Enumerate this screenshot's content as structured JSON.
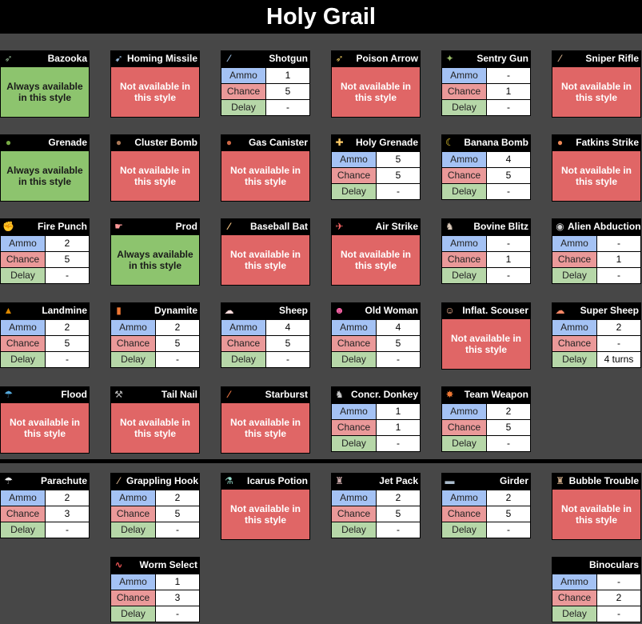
{
  "title": "Holy Grail",
  "labels": {
    "ammo": "Ammo",
    "chance": "Chance",
    "delay": "Delay"
  },
  "colors": {
    "background": "#474747",
    "header": "#000000",
    "available": "#8dc46e",
    "not_available": "#e06666",
    "ammo": "#a4c2f4",
    "chance": "#ea9999",
    "delay": "#b6d7a8"
  },
  "weapons": [
    {
      "name": "Bazooka",
      "icon": "bazooka-icon",
      "glyph": "➶",
      "icon_color": "#8a8",
      "status": "Always available in this style"
    },
    {
      "name": "Homing Missile",
      "icon": "homing-missile-icon",
      "glyph": "➹",
      "icon_color": "#9bd",
      "status": "Not available in this style"
    },
    {
      "name": "Shotgun",
      "icon": "shotgun-icon",
      "glyph": "⁄",
      "icon_color": "#9bd",
      "ammo": "1",
      "chance": "5",
      "delay": "-"
    },
    {
      "name": "Poison Arrow",
      "icon": "poison-arrow-icon",
      "glyph": "➶",
      "icon_color": "#db5",
      "status": "Not available in this style"
    },
    {
      "name": "Sentry Gun",
      "icon": "sentry-gun-icon",
      "glyph": "✦",
      "icon_color": "#9b6",
      "ammo": "-",
      "chance": "1",
      "delay": "-"
    },
    {
      "name": "Sniper Rifle",
      "icon": "sniper-rifle-icon",
      "glyph": "⁄",
      "icon_color": "#ca8",
      "status": "Not available in this style"
    },
    {
      "name": "Grenade",
      "icon": "grenade-icon",
      "glyph": "●",
      "icon_color": "#7a4",
      "status": "Always available in this style"
    },
    {
      "name": "Cluster Bomb",
      "icon": "cluster-bomb-icon",
      "glyph": "●",
      "icon_color": "#a75",
      "status": "Not available in this style"
    },
    {
      "name": "Gas Canister",
      "icon": "gas-canister-icon",
      "glyph": "●",
      "icon_color": "#c64",
      "status": "Not available in this style"
    },
    {
      "name": "Holy Grenade",
      "icon": "holy-grenade-icon",
      "glyph": "✚",
      "icon_color": "#fc6",
      "ammo": "5",
      "chance": "5",
      "delay": "-"
    },
    {
      "name": "Banana Bomb",
      "icon": "banana-bomb-icon",
      "glyph": "☾",
      "icon_color": "#fd3",
      "ammo": "4",
      "chance": "5",
      "delay": "-"
    },
    {
      "name": "Fatkins Strike",
      "icon": "fatkins-strike-icon",
      "glyph": "●",
      "icon_color": "#e85",
      "status": "Not available in this style"
    },
    {
      "name": "Fire Punch",
      "icon": "fire-punch-icon",
      "glyph": "✊",
      "icon_color": "#f84",
      "ammo": "2",
      "chance": "5",
      "delay": "-"
    },
    {
      "name": "Prod",
      "icon": "prod-icon",
      "glyph": "☛",
      "icon_color": "#f99",
      "status": "Always available in this style"
    },
    {
      "name": "Baseball Bat",
      "icon": "baseball-bat-icon",
      "glyph": "⁄",
      "icon_color": "#fc8",
      "status": "Not available in this style"
    },
    {
      "name": "Air Strike",
      "icon": "air-strike-icon",
      "glyph": "✈",
      "icon_color": "#f66",
      "status": "Not available in this style"
    },
    {
      "name": "Bovine Blitz",
      "icon": "bovine-blitz-icon",
      "glyph": "♞",
      "icon_color": "#dcb",
      "ammo": "-",
      "chance": "1",
      "delay": "-"
    },
    {
      "name": "Alien Abduction",
      "icon": "alien-abduction-icon",
      "glyph": "◉",
      "icon_color": "#ccc",
      "ammo": "-",
      "chance": "1",
      "delay": "-"
    },
    {
      "name": "Landmine",
      "icon": "landmine-icon",
      "glyph": "▲",
      "icon_color": "#d80",
      "ammo": "2",
      "chance": "5",
      "delay": "-"
    },
    {
      "name": "Dynamite",
      "icon": "dynamite-icon",
      "glyph": "▮",
      "icon_color": "#e73",
      "ammo": "2",
      "chance": "5",
      "delay": "-"
    },
    {
      "name": "Sheep",
      "icon": "sheep-icon",
      "glyph": "☁",
      "icon_color": "#fdd",
      "ammo": "4",
      "chance": "5",
      "delay": "-"
    },
    {
      "name": "Old Woman",
      "icon": "old-woman-icon",
      "glyph": "☻",
      "icon_color": "#f6a",
      "ammo": "4",
      "chance": "5",
      "delay": "-"
    },
    {
      "name": "Inflat. Scouser",
      "icon": "inflatable-scouser-icon",
      "glyph": "☺",
      "icon_color": "#fb9",
      "status": "Not available in this style"
    },
    {
      "name": "Super Sheep",
      "icon": "super-sheep-icon",
      "glyph": "☁",
      "icon_color": "#f86",
      "ammo": "2",
      "chance": "-",
      "delay": "4 turns"
    },
    {
      "name": "Flood",
      "icon": "flood-icon",
      "glyph": "☂",
      "icon_color": "#5ad",
      "status": "Not available in this style"
    },
    {
      "name": "Tail Nail",
      "icon": "tail-nail-icon",
      "glyph": "⚒",
      "icon_color": "#bbb",
      "status": "Not available in this style"
    },
    {
      "name": "Starburst",
      "icon": "starburst-icon",
      "glyph": "⁄",
      "icon_color": "#e74",
      "status": "Not available in this style"
    },
    {
      "name": "Concr. Donkey",
      "icon": "concrete-donkey-icon",
      "glyph": "♞",
      "icon_color": "#ccc",
      "ammo": "1",
      "chance": "1",
      "delay": "-"
    },
    {
      "name": "Team Weapon",
      "icon": "team-weapon-icon",
      "glyph": "✸",
      "icon_color": "#e73",
      "ammo": "2",
      "chance": "5",
      "delay": "-"
    },
    {
      "name": "Parachute",
      "icon": "parachute-icon",
      "glyph": "☂",
      "icon_color": "#eee",
      "ammo": "2",
      "chance": "3",
      "delay": "-"
    },
    {
      "name": "Grappling Hook",
      "icon": "grappling-hook-icon",
      "glyph": "⁄",
      "icon_color": "#ca8",
      "ammo": "2",
      "chance": "5",
      "delay": "-"
    },
    {
      "name": "Icarus Potion",
      "icon": "icarus-potion-icon",
      "glyph": "⚗",
      "icon_color": "#9dc",
      "status": "Not available in this style"
    },
    {
      "name": "Jet Pack",
      "icon": "jet-pack-icon",
      "glyph": "♜",
      "icon_color": "#caa",
      "ammo": "2",
      "chance": "5",
      "delay": "-"
    },
    {
      "name": "Girder",
      "icon": "girder-icon",
      "glyph": "▬",
      "icon_color": "#abc",
      "ammo": "2",
      "chance": "5",
      "delay": "-"
    },
    {
      "name": "Bubble Trouble",
      "icon": "bubble-trouble-icon",
      "glyph": "♜",
      "icon_color": "#ca8",
      "status": "Not available in this style"
    },
    {
      "name": "Worm Select",
      "icon": "worm-select-icon",
      "glyph": "∿",
      "icon_color": "#e55",
      "ammo": "1",
      "chance": "3",
      "delay": "-"
    },
    {
      "name": "Binoculars",
      "icon": "",
      "glyph": "",
      "icon_color": "",
      "ammo": "-",
      "chance": "2",
      "delay": "-"
    }
  ]
}
